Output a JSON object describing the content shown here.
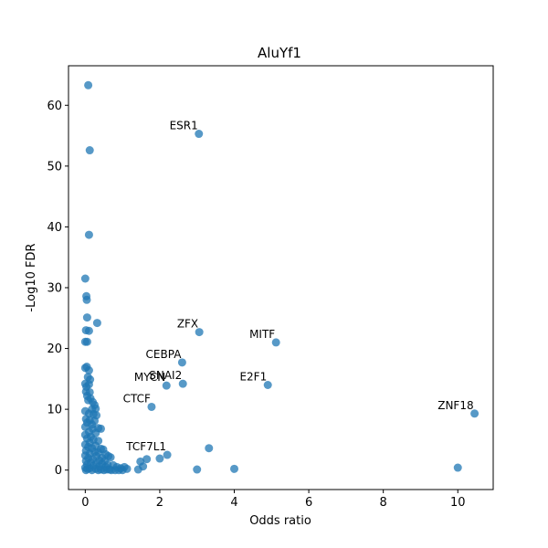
{
  "chart_data": {
    "type": "scatter",
    "title": "AluYf1",
    "xlabel": "Odds ratio",
    "ylabel": "-Log10 FDR",
    "xlim": [
      -0.45,
      10.95
    ],
    "ylim": [
      -3.2,
      66.5
    ],
    "xticks": [
      0,
      2,
      4,
      6,
      8,
      10
    ],
    "yticks": [
      0,
      10,
      20,
      30,
      40,
      50,
      60
    ],
    "grid": false,
    "point_color": "#1f77b4",
    "points": [
      {
        "x": 0.08,
        "y": 63.3
      },
      {
        "x": 0.12,
        "y": 52.6
      },
      {
        "x": 0.1,
        "y": 38.7
      },
      {
        "x": 0.0,
        "y": 31.5
      },
      {
        "x": 0.03,
        "y": 28.6
      },
      {
        "x": 0.04,
        "y": 28.0
      },
      {
        "x": 0.05,
        "y": 25.1
      },
      {
        "x": 0.02,
        "y": 23.0
      },
      {
        "x": 0.1,
        "y": 22.9
      },
      {
        "x": 0.32,
        "y": 24.2
      },
      {
        "x": 0.0,
        "y": 21.1
      },
      {
        "x": 0.05,
        "y": 21.1
      },
      {
        "x": 0.0,
        "y": 16.8
      },
      {
        "x": 0.04,
        "y": 17.0
      },
      {
        "x": 0.1,
        "y": 16.4
      },
      {
        "x": 0.07,
        "y": 15.3
      },
      {
        "x": 0.13,
        "y": 14.9
      },
      {
        "x": 0.0,
        "y": 14.2
      },
      {
        "x": 0.03,
        "y": 13.7
      },
      {
        "x": 0.1,
        "y": 14.1
      },
      {
        "x": 0.02,
        "y": 12.9
      },
      {
        "x": 0.12,
        "y": 12.8
      },
      {
        "x": 0.05,
        "y": 12.2
      },
      {
        "x": 0.08,
        "y": 11.5
      },
      {
        "x": 0.14,
        "y": 11.8
      },
      {
        "x": 0.2,
        "y": 11.2
      },
      {
        "x": 0.25,
        "y": 10.7
      },
      {
        "x": 0.28,
        "y": 10.1
      },
      {
        "x": 0.18,
        "y": 10.0
      },
      {
        "x": 0.0,
        "y": 9.7
      },
      {
        "x": 0.1,
        "y": 9.3
      },
      {
        "x": 0.22,
        "y": 9.2
      },
      {
        "x": 0.3,
        "y": 9.0
      },
      {
        "x": 0.02,
        "y": 8.4
      },
      {
        "x": 0.12,
        "y": 8.2
      },
      {
        "x": 0.25,
        "y": 8.1
      },
      {
        "x": 0.05,
        "y": 7.8
      },
      {
        "x": 0.18,
        "y": 7.5
      },
      {
        "x": 0.0,
        "y": 7.1
      },
      {
        "x": 0.2,
        "y": 6.8
      },
      {
        "x": 0.35,
        "y": 6.9
      },
      {
        "x": 0.42,
        "y": 6.8
      },
      {
        "x": 0.1,
        "y": 6.3
      },
      {
        "x": 0.28,
        "y": 6.1
      },
      {
        "x": 0.0,
        "y": 5.8
      },
      {
        "x": 0.15,
        "y": 5.5
      },
      {
        "x": 0.05,
        "y": 5.2
      },
      {
        "x": 0.22,
        "y": 5.0
      },
      {
        "x": 0.35,
        "y": 4.8
      },
      {
        "x": 0.12,
        "y": 4.5
      },
      {
        "x": 0.0,
        "y": 4.2
      },
      {
        "x": 0.28,
        "y": 4.0
      },
      {
        "x": 0.08,
        "y": 3.8
      },
      {
        "x": 0.18,
        "y": 3.6
      },
      {
        "x": 0.42,
        "y": 3.5
      },
      {
        "x": 0.48,
        "y": 3.4
      },
      {
        "x": 0.02,
        "y": 3.2
      },
      {
        "x": 0.25,
        "y": 3.0
      },
      {
        "x": 0.35,
        "y": 2.9
      },
      {
        "x": 0.55,
        "y": 2.6
      },
      {
        "x": 0.12,
        "y": 2.7
      },
      {
        "x": 0.0,
        "y": 2.4
      },
      {
        "x": 0.3,
        "y": 2.3
      },
      {
        "x": 0.62,
        "y": 2.3
      },
      {
        "x": 0.68,
        "y": 2.1
      },
      {
        "x": 0.45,
        "y": 2.0
      },
      {
        "x": 0.08,
        "y": 2.0
      },
      {
        "x": 0.2,
        "y": 1.8
      },
      {
        "x": 0.38,
        "y": 1.6
      },
      {
        "x": 0.52,
        "y": 1.5
      },
      {
        "x": 0.02,
        "y": 1.5
      },
      {
        "x": 0.15,
        "y": 1.3
      },
      {
        "x": 0.3,
        "y": 1.1
      },
      {
        "x": 0.45,
        "y": 1.0
      },
      {
        "x": 0.6,
        "y": 0.9
      },
      {
        "x": 0.75,
        "y": 0.8
      },
      {
        "x": 0.05,
        "y": 0.9
      },
      {
        "x": 0.22,
        "y": 0.7
      },
      {
        "x": 0.38,
        "y": 0.6
      },
      {
        "x": 0.55,
        "y": 0.5
      },
      {
        "x": 0.85,
        "y": 0.5
      },
      {
        "x": 0.95,
        "y": 0.3
      },
      {
        "x": 1.05,
        "y": 0.5
      },
      {
        "x": 1.12,
        "y": 0.2
      },
      {
        "x": 0.0,
        "y": 0.4
      },
      {
        "x": 0.12,
        "y": 0.3
      },
      {
        "x": 0.28,
        "y": 0.2
      },
      {
        "x": 0.42,
        "y": 0.1
      },
      {
        "x": 0.58,
        "y": 0.1
      },
      {
        "x": 0.7,
        "y": 0.0
      },
      {
        "x": 0.8,
        "y": 0.0
      },
      {
        "x": 0.9,
        "y": 0.0
      },
      {
        "x": 1.0,
        "y": 0.0
      },
      {
        "x": 0.02,
        "y": 0.0
      },
      {
        "x": 0.18,
        "y": 0.0
      },
      {
        "x": 0.35,
        "y": 0.0
      },
      {
        "x": 0.5,
        "y": 0.0
      },
      {
        "x": 0.65,
        "y": 0.1
      },
      {
        "x": 0.06,
        "y": 0.2
      },
      {
        "x": 1.42,
        "y": 0.1
      },
      {
        "x": 1.48,
        "y": 1.4
      },
      {
        "x": 1.55,
        "y": 0.6
      },
      {
        "x": 1.65,
        "y": 1.8
      },
      {
        "x": 1.78,
        "y": 10.4
      },
      {
        "x": 2.0,
        "y": 1.9
      },
      {
        "x": 2.18,
        "y": 13.9
      },
      {
        "x": 2.2,
        "y": 2.5
      },
      {
        "x": 2.6,
        "y": 17.7
      },
      {
        "x": 2.62,
        "y": 14.2
      },
      {
        "x": 3.0,
        "y": 0.1
      },
      {
        "x": 3.05,
        "y": 55.3
      },
      {
        "x": 3.06,
        "y": 22.7
      },
      {
        "x": 3.32,
        "y": 3.6
      },
      {
        "x": 4.0,
        "y": 0.2
      },
      {
        "x": 4.9,
        "y": 14.0
      },
      {
        "x": 5.12,
        "y": 21.0
      },
      {
        "x": 10.0,
        "y": 0.4
      },
      {
        "x": 10.45,
        "y": 9.3
      }
    ],
    "annotations": [
      {
        "text": "ESR1",
        "x": 3.05,
        "y": 55.3
      },
      {
        "text": "ZFX",
        "x": 3.06,
        "y": 22.7
      },
      {
        "text": "MITF",
        "x": 5.12,
        "y": 21.0
      },
      {
        "text": "CEBPA",
        "x": 2.6,
        "y": 17.7
      },
      {
        "text": "SNAI2",
        "x": 2.62,
        "y": 14.2
      },
      {
        "text": "E2F1",
        "x": 4.9,
        "y": 14.0
      },
      {
        "text": "MYCN",
        "x": 2.18,
        "y": 13.9
      },
      {
        "text": "CTCF",
        "x": 1.78,
        "y": 10.4
      },
      {
        "text": "ZNF18",
        "x": 10.45,
        "y": 9.3
      },
      {
        "text": "TCF7L1",
        "x": 2.2,
        "y": 2.5
      }
    ]
  }
}
